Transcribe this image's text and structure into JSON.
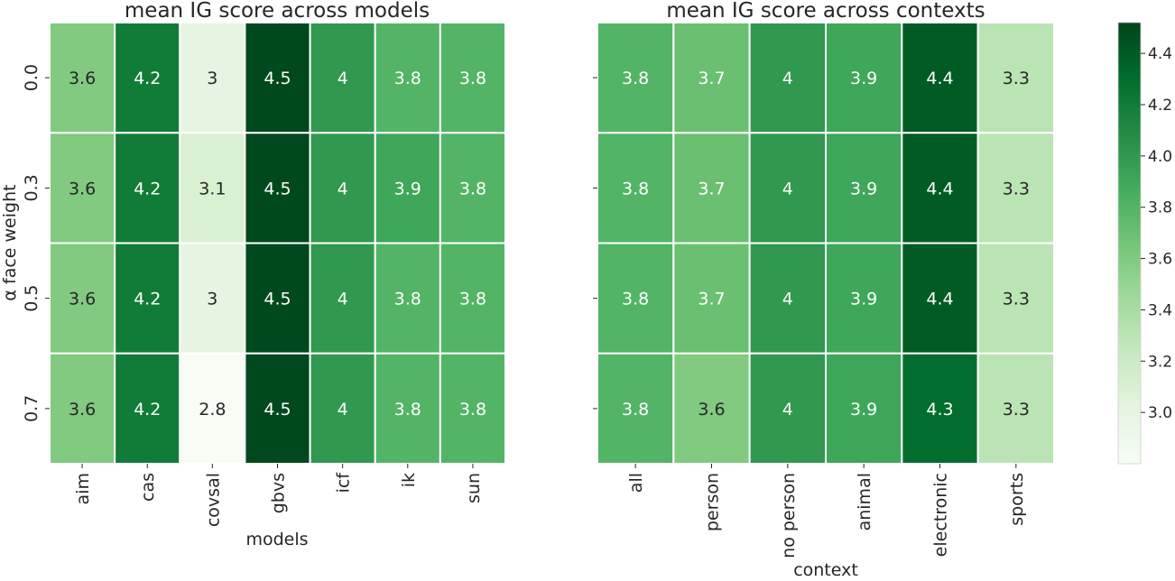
{
  "chart_data": [
    {
      "type": "heatmap",
      "title": "mean IG score across models",
      "xlabel": "models",
      "ylabel": "α face weight",
      "x": [
        "aim",
        "cas",
        "covsal",
        "gbvs",
        "icf",
        "ik",
        "sun"
      ],
      "y": [
        "0.0",
        "0.3",
        "0.5",
        "0.7"
      ],
      "values": [
        [
          3.6,
          4.2,
          3.0,
          4.5,
          4.0,
          3.8,
          3.8
        ],
        [
          3.6,
          4.2,
          3.1,
          4.5,
          4.0,
          3.9,
          3.8
        ],
        [
          3.6,
          4.2,
          3.0,
          4.5,
          4.0,
          3.8,
          3.8
        ],
        [
          3.6,
          4.2,
          2.8,
          4.5,
          4.0,
          3.8,
          3.8
        ]
      ],
      "cell_labels": [
        [
          "3.6",
          "4.2",
          "3",
          "4.5",
          "4",
          "3.8",
          "3.8"
        ],
        [
          "3.6",
          "4.2",
          "3.1",
          "4.5",
          "4",
          "3.9",
          "3.8"
        ],
        [
          "3.6",
          "4.2",
          "3",
          "4.5",
          "4",
          "3.8",
          "3.8"
        ],
        [
          "3.6",
          "4.2",
          "2.8",
          "4.5",
          "4",
          "3.8",
          "3.8"
        ]
      ]
    },
    {
      "type": "heatmap",
      "title": "mean IG score across contexts",
      "xlabel": "context",
      "ylabel": "",
      "x": [
        "all",
        "person",
        "no person",
        "animal",
        "electronic",
        "sports"
      ],
      "y": [
        "0.0",
        "0.3",
        "0.5",
        "0.7"
      ],
      "values": [
        [
          3.8,
          3.7,
          4.0,
          3.9,
          4.4,
          3.3
        ],
        [
          3.8,
          3.7,
          4.0,
          3.9,
          4.4,
          3.3
        ],
        [
          3.8,
          3.7,
          4.0,
          3.9,
          4.4,
          3.3
        ],
        [
          3.8,
          3.6,
          4.0,
          3.9,
          4.3,
          3.3
        ]
      ],
      "cell_labels": [
        [
          "3.8",
          "3.7",
          "4",
          "3.9",
          "4.4",
          "3.3"
        ],
        [
          "3.8",
          "3.7",
          "4",
          "3.9",
          "4.4",
          "3.3"
        ],
        [
          "3.8",
          "3.7",
          "4",
          "3.9",
          "4.4",
          "3.3"
        ],
        [
          "3.8",
          "3.6",
          "4",
          "3.9",
          "4.3",
          "3.3"
        ]
      ]
    }
  ],
  "colorbar": {
    "colormap": "Greens",
    "range": [
      2.8,
      4.52
    ],
    "ticks": [
      "3.0",
      "3.2",
      "3.4",
      "3.6",
      "3.8",
      "4.0",
      "4.2",
      "4.4"
    ]
  }
}
